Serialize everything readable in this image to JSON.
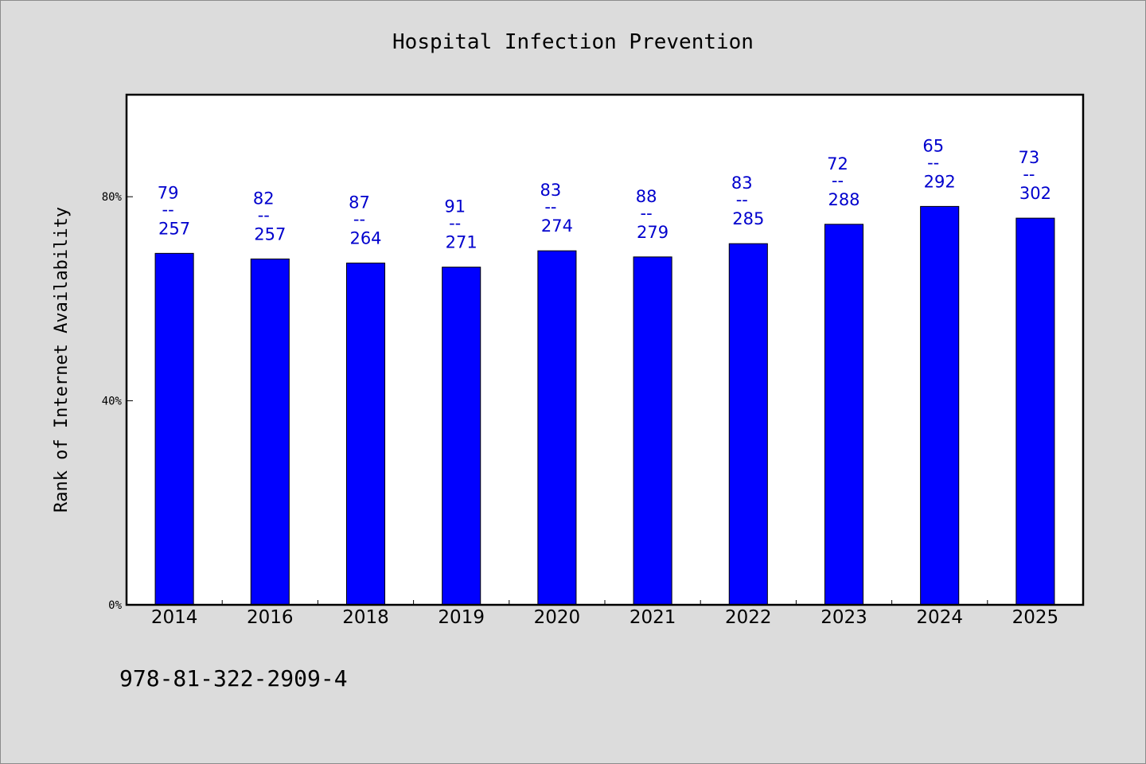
{
  "chart_data": {
    "type": "bar",
    "title": "Hospital Infection Prevention",
    "ylabel": "Rank of Internet Availability",
    "xlabel": "",
    "ylim": [
      0,
      100
    ],
    "yticks": [
      {
        "value": 0,
        "label": "0%"
      },
      {
        "value": 40,
        "label": "40%"
      },
      {
        "value": 80,
        "label": "80%"
      }
    ],
    "categories": [
      "2014",
      "2016",
      "2018",
      "2019",
      "2020",
      "2021",
      "2022",
      "2023",
      "2024",
      "2025"
    ],
    "values": [
      68.9,
      67.8,
      67.0,
      66.2,
      69.4,
      68.2,
      70.8,
      74.6,
      78.1,
      75.8
    ],
    "label_top": [
      "79",
      "82",
      "87",
      "91",
      "83",
      "88",
      "83",
      "72",
      "65",
      "73"
    ],
    "label_sep": "--",
    "label_bottom": [
      "257",
      "257",
      "264",
      "271",
      "274",
      "279",
      "285",
      "288",
      "292",
      "302"
    ],
    "bar_color": "#0000ff",
    "label_color": "#0000cd",
    "grid": false,
    "legend": "none"
  },
  "footer": {
    "isbn": "978-81-322-2909-4"
  }
}
